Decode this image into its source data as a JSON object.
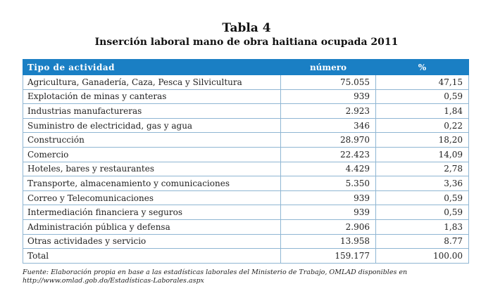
{
  "title": "Tabla 4",
  "subtitle": "Inserción laboral mano de obra haitiana ocupada 2011",
  "table": {
    "headers": [
      "Tipo de actividad",
      "número",
      "%"
    ],
    "rows": [
      [
        "Agricultura, Ganadería, Caza, Pesca y Silvicultura",
        "75.055",
        "47,15"
      ],
      [
        "Explotación de minas y canteras",
        "939",
        "0,59"
      ],
      [
        "Industrias manufactureras",
        "2.923",
        "1,84"
      ],
      [
        "Suministro de electricidad, gas y agua",
        "346",
        "0,22"
      ],
      [
        "Construcción",
        "28.970",
        "18,20"
      ],
      [
        "Comercio",
        "22.423",
        "14,09"
      ],
      [
        "Hoteles, bares y restaurantes",
        "4.429",
        "2,78"
      ],
      [
        "Transporte, almacenamiento y comunicaciones",
        "5.350",
        "3,36"
      ],
      [
        "Correo y Telecomunicaciones",
        "939",
        "0,59"
      ],
      [
        "Intermediación financiera y seguros",
        "939",
        "0,59"
      ],
      [
        "Administración pública y defensa",
        "2.906",
        "1,83"
      ],
      [
        "Otras actividades y servicio",
        "13.958",
        "8.77"
      ],
      [
        "Total",
        "159.177",
        "100.00"
      ]
    ]
  },
  "footnote": "Fuente: Elaboración propia en base a las estadísticas laborales del Ministerio de Trabajo, OMLAD disponibles en http://www.omlad.gob.do/Estadísticas-Laborales.aspx",
  "colors": {
    "header_bg": "#1a7fc4",
    "grid": "#8fb6d3"
  }
}
